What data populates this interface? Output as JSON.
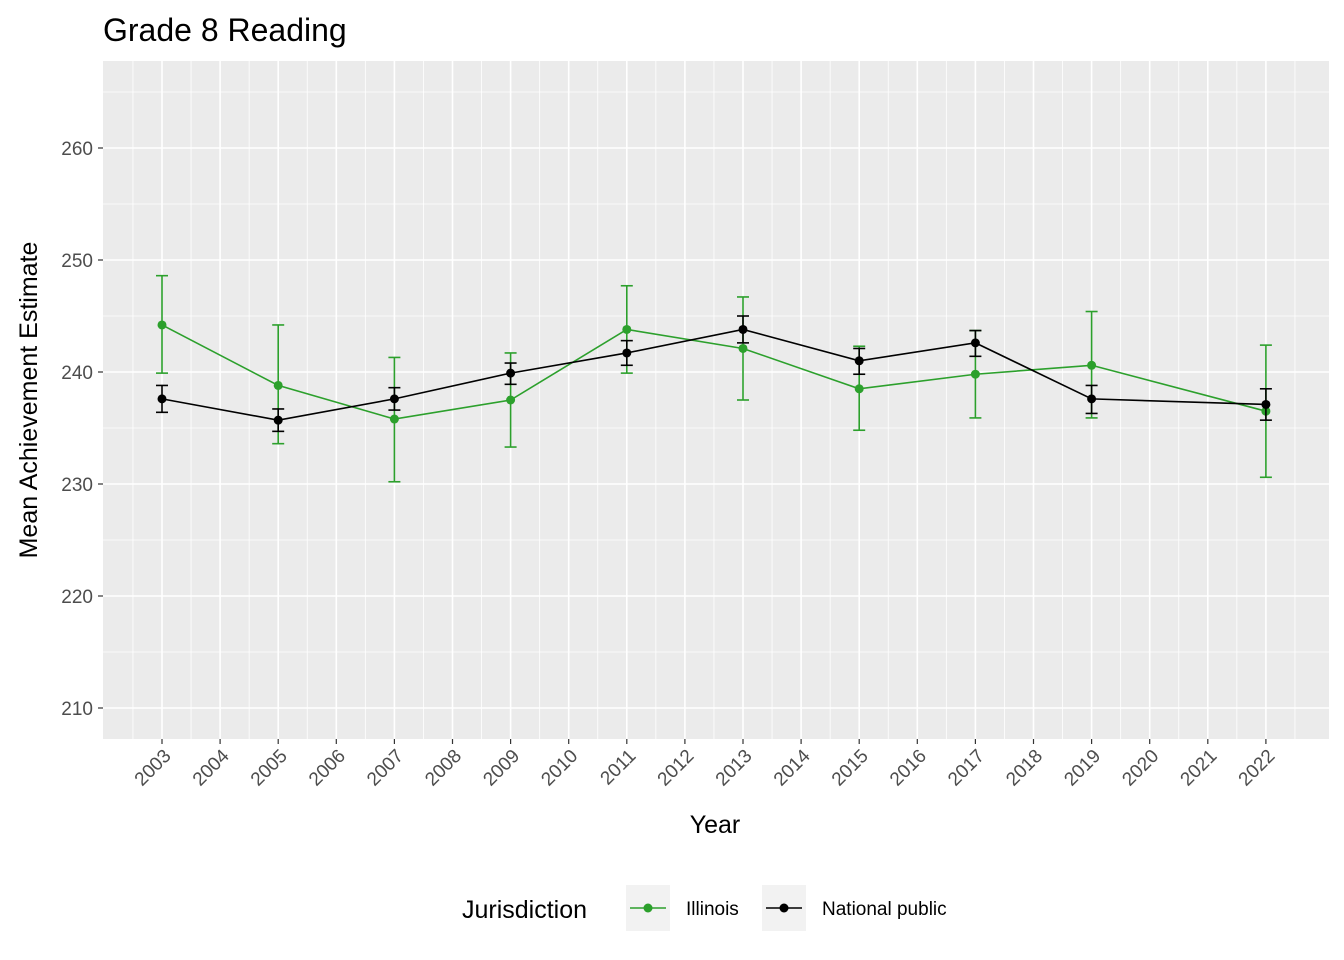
{
  "chart_data": {
    "type": "line",
    "title": "Grade 8 Reading",
    "xlabel": "Year",
    "ylabel": "Mean Achievement Estimate",
    "x_categories": [
      "2003",
      "2004",
      "2005",
      "2006",
      "2007",
      "2008",
      "2009",
      "2010",
      "2011",
      "2012",
      "2013",
      "2014",
      "2015",
      "2016",
      "2017",
      "2018",
      "2019",
      "2020",
      "2021",
      "2022"
    ],
    "yticks": [
      210,
      220,
      230,
      240,
      250,
      260
    ],
    "ylim": [
      207,
      268
    ],
    "grid": true,
    "legend": {
      "title": "Jurisdiction",
      "position": "bottom"
    },
    "series": [
      {
        "name": "Illinois",
        "color": "#2ca02c",
        "points": [
          {
            "x": "2003",
            "y": 244.2,
            "lo": 239.9,
            "hi": 248.6
          },
          {
            "x": "2005",
            "y": 238.8,
            "lo": 233.6,
            "hi": 244.2
          },
          {
            "x": "2007",
            "y": 235.8,
            "lo": 230.2,
            "hi": 241.3
          },
          {
            "x": "2009",
            "y": 237.5,
            "lo": 233.3,
            "hi": 241.7
          },
          {
            "x": "2011",
            "y": 243.8,
            "lo": 239.9,
            "hi": 247.7
          },
          {
            "x": "2013",
            "y": 242.1,
            "lo": 237.5,
            "hi": 246.7
          },
          {
            "x": "2015",
            "y": 238.5,
            "lo": 234.8,
            "hi": 242.3
          },
          {
            "x": "2017",
            "y": 239.8,
            "lo": 235.9,
            "hi": 243.7
          },
          {
            "x": "2019",
            "y": 240.6,
            "lo": 235.9,
            "hi": 245.4
          },
          {
            "x": "2022",
            "y": 236.5,
            "lo": 230.6,
            "hi": 242.4
          }
        ]
      },
      {
        "name": "National public",
        "color": "#000000",
        "points": [
          {
            "x": "2003",
            "y": 237.6,
            "lo": 236.4,
            "hi": 238.8
          },
          {
            "x": "2005",
            "y": 235.7,
            "lo": 234.7,
            "hi": 236.7
          },
          {
            "x": "2007",
            "y": 237.6,
            "lo": 236.6,
            "hi": 238.6
          },
          {
            "x": "2009",
            "y": 239.9,
            "lo": 238.9,
            "hi": 240.8
          },
          {
            "x": "2011",
            "y": 241.7,
            "lo": 240.6,
            "hi": 242.8
          },
          {
            "x": "2013",
            "y": 243.8,
            "lo": 242.6,
            "hi": 245.0
          },
          {
            "x": "2015",
            "y": 241.0,
            "lo": 239.8,
            "hi": 242.1
          },
          {
            "x": "2017",
            "y": 242.6,
            "lo": 241.4,
            "hi": 243.7
          },
          {
            "x": "2019",
            "y": 237.6,
            "lo": 236.3,
            "hi": 238.8
          },
          {
            "x": "2022",
            "y": 237.1,
            "lo": 235.7,
            "hi": 238.5
          }
        ]
      }
    ]
  }
}
